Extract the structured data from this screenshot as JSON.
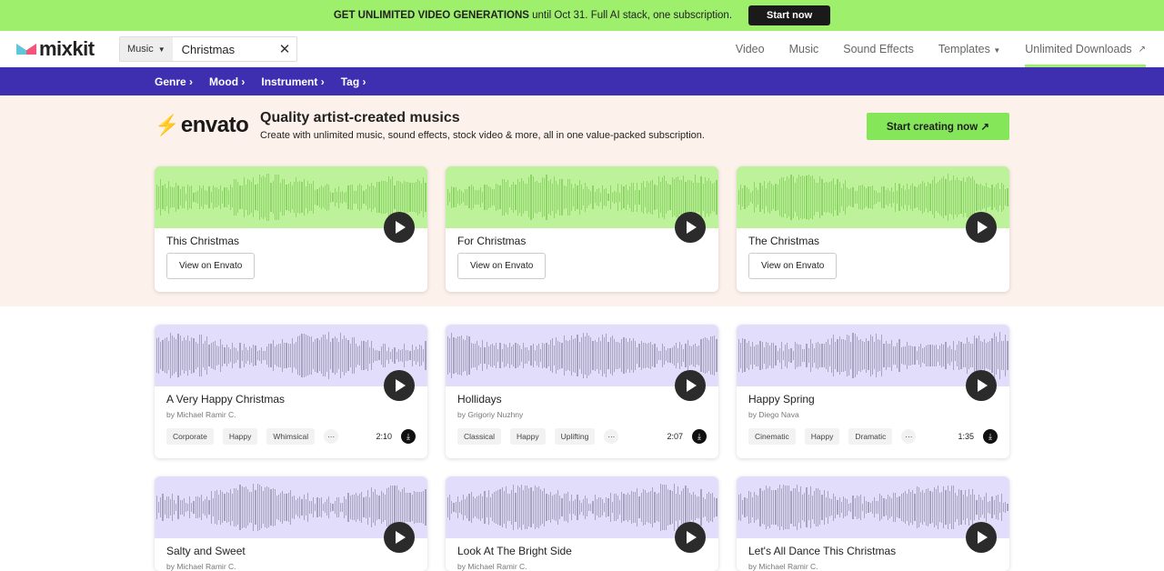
{
  "promo": {
    "bold": "GET UNLIMITED VIDEO GENERATIONS",
    "text": "until Oct 31. Full AI stack, one subscription.",
    "button": "Start now"
  },
  "header": {
    "logo": "mixkit",
    "search_category": "Music",
    "search_value": "Christmas",
    "nav": [
      "Video",
      "Music",
      "Sound Effects",
      "Templates",
      "Unlimited Downloads"
    ]
  },
  "subnav": [
    "Genre",
    "Mood",
    "Instrument",
    "Tag"
  ],
  "envato": {
    "logo": "envato",
    "title": "Quality artist-created musics",
    "subtitle": "Create with unlimited music, sound effects, stock video & more, all in one value-packed subscription.",
    "cta": "Start creating now",
    "cards": [
      {
        "title": "This Christmas",
        "button": "View on Envato"
      },
      {
        "title": "For Christmas",
        "button": "View on Envato"
      },
      {
        "title": "The Christmas",
        "button": "View on Envato"
      }
    ]
  },
  "colors": {
    "promo": "#9eef6c",
    "subnav": "#3e2fb0",
    "envato_bg": "#fdf2eb",
    "envato_wave": "#bdf29a",
    "track_wave": "#e2ddfa"
  },
  "tracks": [
    {
      "title": "A Very Happy Christmas",
      "author": "by Michael Ramir C.",
      "tags": [
        "Corporate",
        "Happy",
        "Whimsical"
      ],
      "duration": "2:10"
    },
    {
      "title": "Hollidays",
      "author": "by Grigoriy Nuzhny",
      "tags": [
        "Classical",
        "Happy",
        "Uplifting"
      ],
      "duration": "2:07"
    },
    {
      "title": "Happy Spring",
      "author": "by Diego Nava",
      "tags": [
        "Cinematic",
        "Happy",
        "Dramatic"
      ],
      "duration": "1:35"
    },
    {
      "title": "Salty and Sweet",
      "author": "by Michael Ramir C."
    },
    {
      "title": "Look At The Bright Side",
      "author": "by Michael Ramir C."
    },
    {
      "title": "Let's All Dance This Christmas",
      "author": "by Michael Ramir C."
    }
  ]
}
